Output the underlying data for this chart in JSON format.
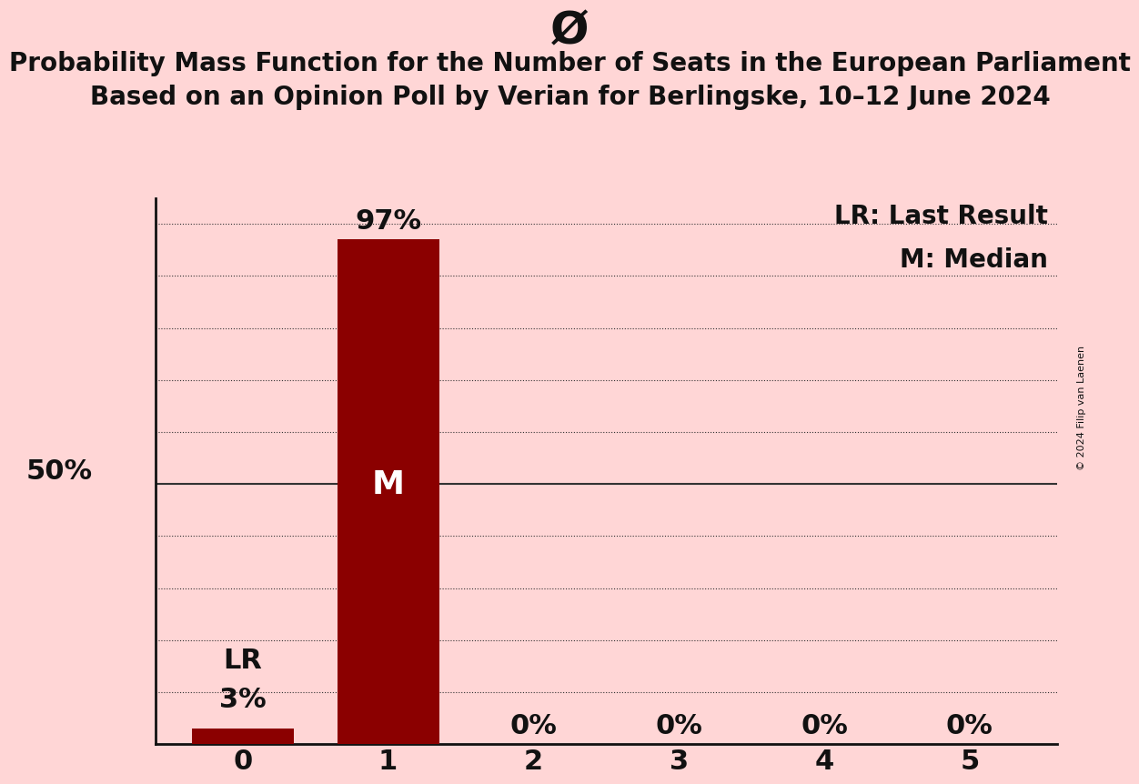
{
  "title_symbol": "Ø",
  "title_line1": "Probability Mass Function for the Number of Seats in the European Parliament",
  "title_line2": "Based on an Opinion Poll by Verian for Berlingske, 10–12 June 2024",
  "categories": [
    0,
    1,
    2,
    3,
    4,
    5
  ],
  "values": [
    0.03,
    0.97,
    0.0,
    0.0,
    0.0,
    0.0
  ],
  "bar_color": "#8B0000",
  "background_color": "#FFD6D6",
  "ylabel_50": "50%",
  "bar_labels": [
    "3%",
    "97%",
    "0%",
    "0%",
    "0%",
    "0%"
  ],
  "median_bar": 1,
  "last_result_bar": 0,
  "median_label": "M",
  "last_result_label": "LR",
  "legend_lr": "LR: Last Result",
  "legend_m": "M: Median",
  "copyright": "© 2024 Filip van Laenen",
  "yticks": [
    0.0,
    0.1,
    0.2,
    0.3,
    0.4,
    0.5,
    0.6,
    0.7,
    0.8,
    0.9,
    1.0
  ],
  "ylim": [
    0,
    1.05
  ],
  "grid_color": "#333333",
  "font_color": "#111111",
  "title_symbol_fontsize": 36,
  "title_fontsize": 20,
  "axis_label_fontsize": 22,
  "bar_label_fontsize": 22,
  "inside_label_fontsize": 26,
  "legend_fontsize": 20,
  "fifty_label_fontsize": 22,
  "lr_label_fontsize": 22
}
